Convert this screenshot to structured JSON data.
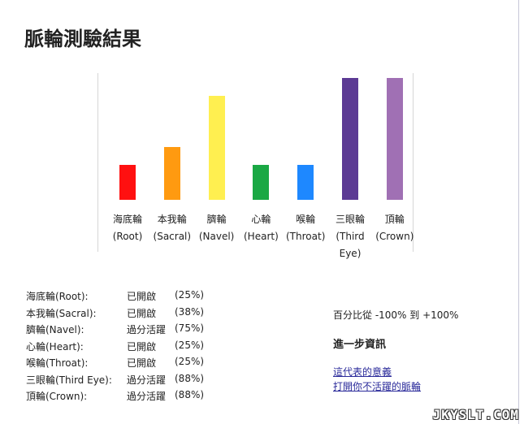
{
  "page": {
    "title": "脈輪測驗結果"
  },
  "chart_data": {
    "type": "bar",
    "categories": [
      [
        "海底輪",
        "(Root)"
      ],
      [
        "本我輪",
        "(Sacral)"
      ],
      [
        "臍輪",
        "(Navel)"
      ],
      [
        "心輪",
        "(Heart)"
      ],
      [
        "喉輪",
        "(Throat)"
      ],
      [
        "三眼輪",
        "(Third",
        "Eye)"
      ],
      [
        "頂輪",
        "(Crown)"
      ]
    ],
    "values": [
      25,
      38,
      75,
      25,
      25,
      88,
      88
    ],
    "colors": [
      "#ff1010",
      "#ff9a10",
      "#ffef50",
      "#1aa844",
      "#1e88ff",
      "#5c3a94",
      "#a070b4"
    ],
    "ylim": [
      -100,
      100
    ]
  },
  "results": [
    {
      "name": "海底輪(Root):",
      "status": "已開啟",
      "pct": "(25%)"
    },
    {
      "name": "本我輪(Sacral):",
      "status": "已開啟",
      "pct": "(38%)"
    },
    {
      "name": "臍輪(Navel):",
      "status": "過分活躍",
      "pct": "(75%)"
    },
    {
      "name": "心輪(Heart):",
      "status": "已開啟",
      "pct": "(25%)"
    },
    {
      "name": "喉輪(Throat):",
      "status": "已開啟",
      "pct": "(25%)"
    },
    {
      "name": "三眼輪(Third Eye):",
      "status": "過分活躍",
      "pct": "(88%)"
    },
    {
      "name": "頂輪(Crown):",
      "status": "過分活躍",
      "pct": "(88%)"
    }
  ],
  "info": {
    "range_note": "百分比從 -100% 到 +100%",
    "more_title": "進一步資訊",
    "links": [
      "這代表的意義",
      "打開你不活躍的脈輪"
    ]
  },
  "watermark": "JKYSLT.COM"
}
